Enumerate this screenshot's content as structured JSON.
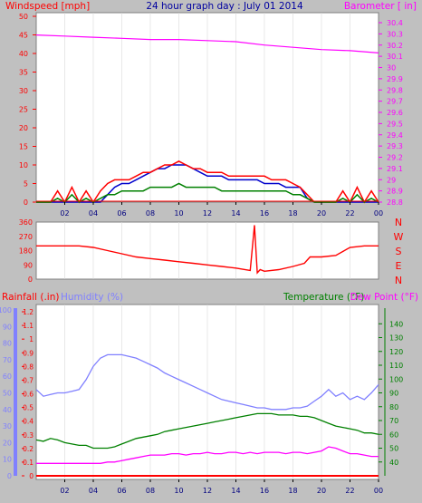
{
  "title": "24 hour graph day : July 01 2014",
  "colors": {
    "background": "#c0c0c0",
    "plot_bg": "#ffffff",
    "wind": "#ff0000",
    "gust": "#0000cc",
    "avg_wind": "#008000",
    "barometer": "#ff00ff",
    "direction": "#ff0000",
    "rain": "#ff0000",
    "humidity": "#8080ff",
    "temperature": "#008000",
    "dewpoint": "#ff00ff",
    "title": "#0000a0",
    "hour_axis": "#00007f"
  },
  "hour_ticks": [
    "02",
    "04",
    "06",
    "08",
    "10",
    "12",
    "14",
    "16",
    "18",
    "20",
    "22",
    "00"
  ],
  "chart_data": [
    {
      "type": "line",
      "name": "wind-barometer",
      "left_label": "Windspeed [mph]",
      "right_label": "Barometer [ in]",
      "x_unit": "hour",
      "xlim": [
        0,
        24
      ],
      "left_axis": {
        "ylim": [
          0,
          50
        ],
        "ticks": [
          0,
          5,
          10,
          15,
          20,
          25,
          30,
          35,
          40,
          45,
          50
        ]
      },
      "right_axis": {
        "ylim": [
          28.8,
          30.4
        ],
        "ticks": [
          "28.8",
          "28.9",
          "29",
          "29.1",
          "29.2",
          "29.3",
          "29.4",
          "29.5",
          "29.6",
          "29.7",
          "29.8",
          "29.9",
          "30",
          "30.1",
          "30.2",
          "30.3",
          "30.4"
        ]
      },
      "series": [
        {
          "key": "gust",
          "axis": "left",
          "x": [
            0,
            0.5,
            1.0,
            1.5,
            2.0,
            2.5,
            3.0,
            3.5,
            4.0,
            4.5,
            5.0,
            5.5,
            6.0,
            6.5,
            7.0,
            7.5,
            8.0,
            8.5,
            9.0,
            9.5,
            10.0,
            10.5,
            11.0,
            11.5,
            12.0,
            12.5,
            13.0,
            13.5,
            14.0,
            14.5,
            15.0,
            15.5,
            16.0,
            16.5,
            17.0,
            17.5,
            18.0,
            18.5,
            19.0,
            19.5,
            20.0,
            20.5,
            21.0,
            21.5,
            22.0,
            22.5,
            23.0,
            23.5,
            24.0
          ],
          "y": [
            0,
            0,
            0,
            0,
            0,
            0,
            0,
            0,
            0,
            0,
            2,
            4,
            5,
            5,
            6,
            7,
            8,
            9,
            9,
            10,
            10,
            10,
            9,
            8,
            7,
            7,
            7,
            6,
            6,
            6,
            6,
            6,
            5,
            5,
            5,
            4,
            4,
            4,
            1,
            0,
            0,
            0,
            0,
            0,
            0,
            0,
            0,
            0,
            0
          ]
        },
        {
          "key": "wind",
          "axis": "left",
          "x": [
            0,
            0.5,
            1.0,
            1.5,
            2.0,
            2.5,
            3.0,
            3.5,
            4.0,
            4.5,
            5.0,
            5.5,
            6.0,
            6.5,
            7.0,
            7.5,
            8.0,
            8.5,
            9.0,
            9.5,
            10.0,
            10.5,
            11.0,
            11.5,
            12.0,
            12.5,
            13.0,
            13.5,
            14.0,
            14.5,
            15.0,
            15.5,
            16.0,
            16.5,
            17.0,
            17.5,
            18.0,
            18.5,
            19.0,
            19.5,
            20.0,
            20.5,
            21.0,
            21.5,
            22.0,
            22.5,
            23.0,
            23.5,
            24.0
          ],
          "y": [
            0,
            0,
            0,
            3,
            0,
            4,
            0,
            3,
            0,
            3,
            5,
            6,
            6,
            6,
            7,
            8,
            8,
            9,
            10,
            10,
            11,
            10,
            9,
            9,
            8,
            8,
            8,
            7,
            7,
            7,
            7,
            7,
            7,
            6,
            6,
            6,
            5,
            4,
            2,
            0,
            0,
            0,
            0,
            3,
            0,
            4,
            0,
            3,
            0
          ]
        },
        {
          "key": "avg_wind",
          "axis": "left",
          "x": [
            0,
            0.5,
            1.0,
            1.5,
            2.0,
            2.5,
            3.0,
            3.5,
            4.0,
            4.5,
            5.0,
            5.5,
            6.0,
            6.5,
            7.0,
            7.5,
            8.0,
            8.5,
            9.0,
            9.5,
            10.0,
            10.5,
            11.0,
            11.5,
            12.0,
            12.5,
            13.0,
            13.5,
            14.0,
            14.5,
            15.0,
            15.5,
            16.0,
            16.5,
            17.0,
            17.5,
            18.0,
            18.5,
            19.0,
            19.5,
            20.0,
            20.5,
            21.0,
            21.5,
            22.0,
            22.5,
            23.0,
            23.5,
            24.0
          ],
          "y": [
            0,
            0,
            0,
            1,
            0,
            2,
            0,
            1,
            0,
            1,
            2,
            2,
            3,
            3,
            3,
            3,
            4,
            4,
            4,
            4,
            5,
            4,
            4,
            4,
            4,
            4,
            3,
            3,
            3,
            3,
            3,
            3,
            3,
            3,
            3,
            3,
            2,
            2,
            1,
            0,
            0,
            0,
            0,
            1,
            0,
            2,
            0,
            1,
            0
          ]
        },
        {
          "key": "barometer",
          "axis": "right",
          "x": [
            0,
            2,
            4,
            6,
            8,
            10,
            12,
            14,
            16,
            18,
            20,
            22,
            24
          ],
          "y": [
            30.29,
            30.28,
            30.27,
            30.26,
            30.25,
            30.25,
            30.24,
            30.23,
            30.2,
            30.18,
            30.16,
            30.15,
            30.13
          ]
        }
      ]
    },
    {
      "type": "line",
      "name": "wind-direction",
      "left_label": "",
      "x_unit": "hour",
      "xlim": [
        0,
        24
      ],
      "ylim": [
        0,
        360
      ],
      "left_ticks": [
        0,
        90,
        180,
        270,
        360
      ],
      "right_ticks": [
        "N",
        "W",
        "S",
        "E",
        "N"
      ],
      "series": [
        {
          "key": "direction",
          "x": [
            0,
            1,
            2,
            3,
            4,
            5,
            6,
            7,
            8,
            9,
            10,
            11,
            12,
            13,
            14,
            15,
            15.3,
            15.5,
            15.7,
            16,
            17,
            18,
            18.8,
            19.2,
            20,
            21,
            22,
            23,
            24
          ],
          "y": [
            210,
            210,
            210,
            210,
            200,
            180,
            160,
            140,
            130,
            120,
            110,
            100,
            90,
            80,
            70,
            55,
            340,
            40,
            60,
            50,
            60,
            80,
            100,
            140,
            140,
            150,
            200,
            210,
            210
          ]
        }
      ]
    },
    {
      "type": "line",
      "name": "rain-humidity-temperature",
      "labels": {
        "rain": "Rainfall (.in)",
        "humidity": "Humidity (%)",
        "temperature": "Temperature (°F)",
        "dewpoint": "Dew Point (°F)"
      },
      "x_unit": "hour",
      "xlim": [
        0,
        24
      ],
      "rain_axis": {
        "ylim": [
          0,
          1.2
        ],
        "ticks": [
          "0",
          "0.1",
          "0.2",
          "0.3",
          "0.4",
          "0.5",
          "0.6",
          "0.7",
          "0.8",
          "0.9",
          "1",
          "1.1",
          "1.2"
        ]
      },
      "humidity_axis": {
        "ylim": [
          0,
          100
        ],
        "ticks": [
          0,
          10,
          20,
          30,
          40,
          50,
          60,
          70,
          80,
          90,
          100
        ]
      },
      "temperature_axis": {
        "ylim": [
          30,
          150
        ],
        "ticks": [
          40,
          50,
          60,
          70,
          80,
          90,
          100,
          110,
          120,
          130,
          140
        ]
      },
      "series": [
        {
          "key": "humidity",
          "axis": "humidity",
          "x": [
            0,
            0.5,
            1,
            1.5,
            2,
            2.5,
            3,
            3.5,
            4,
            4.5,
            5,
            5.5,
            6,
            6.5,
            7,
            7.5,
            8,
            8.5,
            9,
            9.5,
            10,
            10.5,
            11,
            11.5,
            12,
            12.5,
            13,
            13.5,
            14,
            14.5,
            15,
            15.5,
            16,
            16.5,
            17,
            17.5,
            18,
            18.5,
            19,
            19.5,
            20,
            20.5,
            21,
            21.5,
            22,
            22.5,
            23,
            23.5,
            24
          ],
          "y": [
            52,
            48,
            49,
            50,
            50,
            51,
            52,
            58,
            66,
            71,
            73,
            73,
            73,
            72,
            71,
            69,
            67,
            65,
            62,
            60,
            58,
            56,
            54,
            52,
            50,
            48,
            46,
            45,
            44,
            43,
            42,
            41,
            41,
            40,
            40,
            40,
            41,
            41,
            42,
            45,
            48,
            52,
            48,
            50,
            46,
            48,
            46,
            50,
            55
          ]
        },
        {
          "key": "temperature",
          "axis": "temperature",
          "x": [
            0,
            0.5,
            1,
            1.5,
            2,
            2.5,
            3,
            3.5,
            4,
            4.5,
            5,
            5.5,
            6,
            6.5,
            7,
            7.5,
            8,
            8.5,
            9,
            9.5,
            10,
            10.5,
            11,
            11.5,
            12,
            12.5,
            13,
            13.5,
            14,
            14.5,
            15,
            15.5,
            16,
            16.5,
            17,
            17.5,
            18,
            18.5,
            19,
            19.5,
            20,
            20.5,
            21,
            21.5,
            22,
            22.5,
            23,
            23.5,
            24
          ],
          "y": [
            56,
            55,
            57,
            56,
            54,
            53,
            52,
            52,
            50,
            50,
            50,
            51,
            53,
            55,
            57,
            58,
            59,
            60,
            62,
            63,
            64,
            65,
            66,
            67,
            68,
            69,
            70,
            71,
            72,
            73,
            74,
            75,
            75,
            75,
            74,
            74,
            74,
            73,
            73,
            72,
            70,
            68,
            66,
            65,
            64,
            63,
            61,
            61,
            60
          ]
        },
        {
          "key": "dewpoint",
          "axis": "temperature",
          "x": [
            0,
            0.5,
            1,
            1.5,
            2,
            2.5,
            3,
            3.5,
            4,
            4.5,
            5,
            5.5,
            6,
            6.5,
            7,
            7.5,
            8,
            8.5,
            9,
            9.5,
            10,
            10.5,
            11,
            11.5,
            12,
            12.5,
            13,
            13.5,
            14,
            14.5,
            15,
            15.5,
            16,
            16.5,
            17,
            17.5,
            18,
            18.5,
            19,
            19.5,
            20,
            20.5,
            21,
            21.5,
            22,
            22.5,
            23,
            23.5,
            24
          ],
          "y": [
            39,
            39,
            39,
            39,
            39,
            39,
            39,
            39,
            39,
            39,
            40,
            40,
            41,
            42,
            43,
            44,
            45,
            45,
            45,
            46,
            46,
            45,
            46,
            46,
            47,
            46,
            46,
            47,
            47,
            46,
            47,
            46,
            47,
            47,
            47,
            46,
            47,
            47,
            46,
            47,
            48,
            51,
            50,
            48,
            46,
            46,
            45,
            44,
            44
          ]
        },
        {
          "key": "rain",
          "axis": "rain",
          "x": [
            0,
            24
          ],
          "y": [
            0,
            0
          ]
        }
      ]
    }
  ]
}
